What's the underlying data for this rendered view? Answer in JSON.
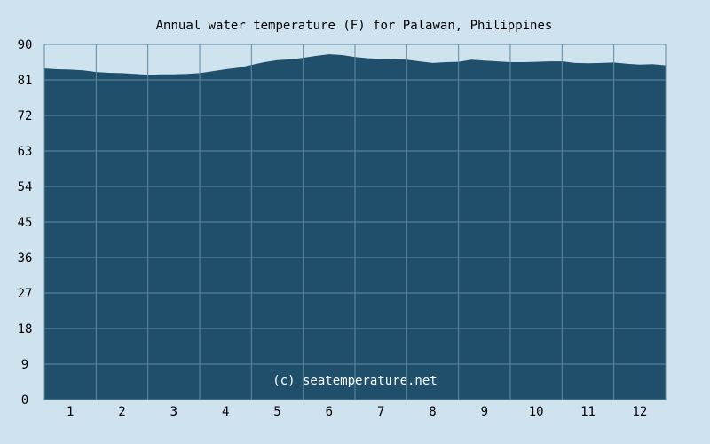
{
  "chart_data": {
    "type": "area",
    "title": "Annual water temperature (F) for Palawan, Philippines",
    "xlabel": "",
    "ylabel": "",
    "ylim": [
      0,
      90
    ],
    "y_ticks": [
      "0",
      "9",
      "18",
      "27",
      "36",
      "45",
      "54",
      "63",
      "72",
      "81",
      "90"
    ],
    "categories": [
      "1",
      "2",
      "3",
      "4",
      "5",
      "6",
      "7",
      "8",
      "9",
      "10",
      "11",
      "12"
    ],
    "xlim": [
      0,
      12
    ],
    "grid": true,
    "x": [
      0,
      0.25,
      0.5,
      0.75,
      1,
      1.25,
      1.5,
      1.75,
      2,
      2.25,
      2.5,
      2.75,
      3,
      3.25,
      3.5,
      3.75,
      4,
      4.25,
      4.5,
      4.75,
      5,
      5.25,
      5.5,
      5.75,
      6,
      6.25,
      6.5,
      6.75,
      7,
      7.25,
      7.5,
      7.75,
      8,
      8.25,
      8.5,
      8.75,
      9,
      9.25,
      9.5,
      9.75,
      10,
      10.25,
      10.5,
      10.75,
      11,
      11.25,
      11.5,
      11.75,
      12
    ],
    "values": [
      83.9,
      83.7,
      83.6,
      83.4,
      83.0,
      82.8,
      82.7,
      82.5,
      82.3,
      82.4,
      82.4,
      82.5,
      82.7,
      83.2,
      83.7,
      84.1,
      84.8,
      85.5,
      86.0,
      86.2,
      86.6,
      87.1,
      87.5,
      87.3,
      86.8,
      86.5,
      86.3,
      86.3,
      86.1,
      85.7,
      85.3,
      85.5,
      85.6,
      86.1,
      85.9,
      85.7,
      85.5,
      85.5,
      85.6,
      85.7,
      85.7,
      85.3,
      85.2,
      85.3,
      85.4,
      85.1,
      84.9,
      85.0,
      84.7
    ],
    "watermark": "(c) seatemperature.net",
    "colors": {
      "background": "#cfe3ef",
      "fill": "#1f4f6a",
      "grid": "#5f8aa1",
      "border": "#5f8aa1",
      "text": "#000000",
      "watermark": "#ffffff"
    }
  }
}
